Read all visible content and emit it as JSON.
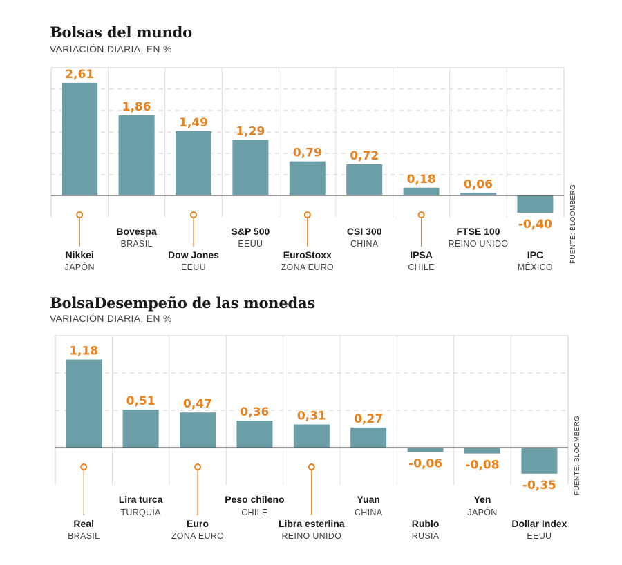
{
  "chart_data": [
    {
      "type": "bar",
      "title": "Bolsas del mundo",
      "subtitle": "VARIACIÓN DIARIA, EN %",
      "source": "FUENTE: BLOOMBERG",
      "categories": [
        "Nikkei",
        "Bovespa",
        "Dow Jones",
        "S&P 500",
        "EuroStoxx",
        "CSI 300",
        "IPSA",
        "FTSE 100",
        "IPC"
      ],
      "category_sub": [
        "JAPÓN",
        "BRASIL",
        "EEUU",
        "EEUU",
        "ZONA EURO",
        "CHINA",
        "CHILE",
        "REINO UNIDO",
        "MÉXICO"
      ],
      "values": [
        2.61,
        1.86,
        1.49,
        1.29,
        0.79,
        0.72,
        0.18,
        0.06,
        -0.4
      ],
      "value_labels": [
        "2,61",
        "1,86",
        "1,49",
        "1,29",
        "0,79",
        "0,72",
        "0,18",
        "0,06",
        "-0,40"
      ],
      "grid": true
    },
    {
      "type": "bar",
      "title": "BolsaDesempeño de las monedas",
      "subtitle": "VARIACIÓN DIARIA, EN %",
      "source": "FUENTE: BLOOMBERG",
      "categories": [
        "Real",
        "Lira turca",
        "Euro",
        "Peso chileno",
        "Libra esterlina",
        "Yuan",
        "Rublo",
        "Yen",
        "Dollar Index"
      ],
      "category_sub": [
        "BRASIL",
        "TURQUÍA",
        "ZONA EURO",
        "CHILE",
        "REINO UNIDO",
        "CHINA",
        "RUSIA",
        "JAPÓN",
        "EEUU"
      ],
      "values": [
        1.18,
        0.51,
        0.47,
        0.36,
        0.31,
        0.27,
        -0.06,
        -0.08,
        -0.35
      ],
      "value_labels": [
        "1,18",
        "0,51",
        "0,47",
        "0,36",
        "0,31",
        "0,27",
        "-0,06",
        "-0,08",
        "-0,35"
      ],
      "grid": true
    }
  ],
  "colors": {
    "bar": "#6b9ea6",
    "value_label": "#e8821e",
    "marker": "#e8821e"
  }
}
